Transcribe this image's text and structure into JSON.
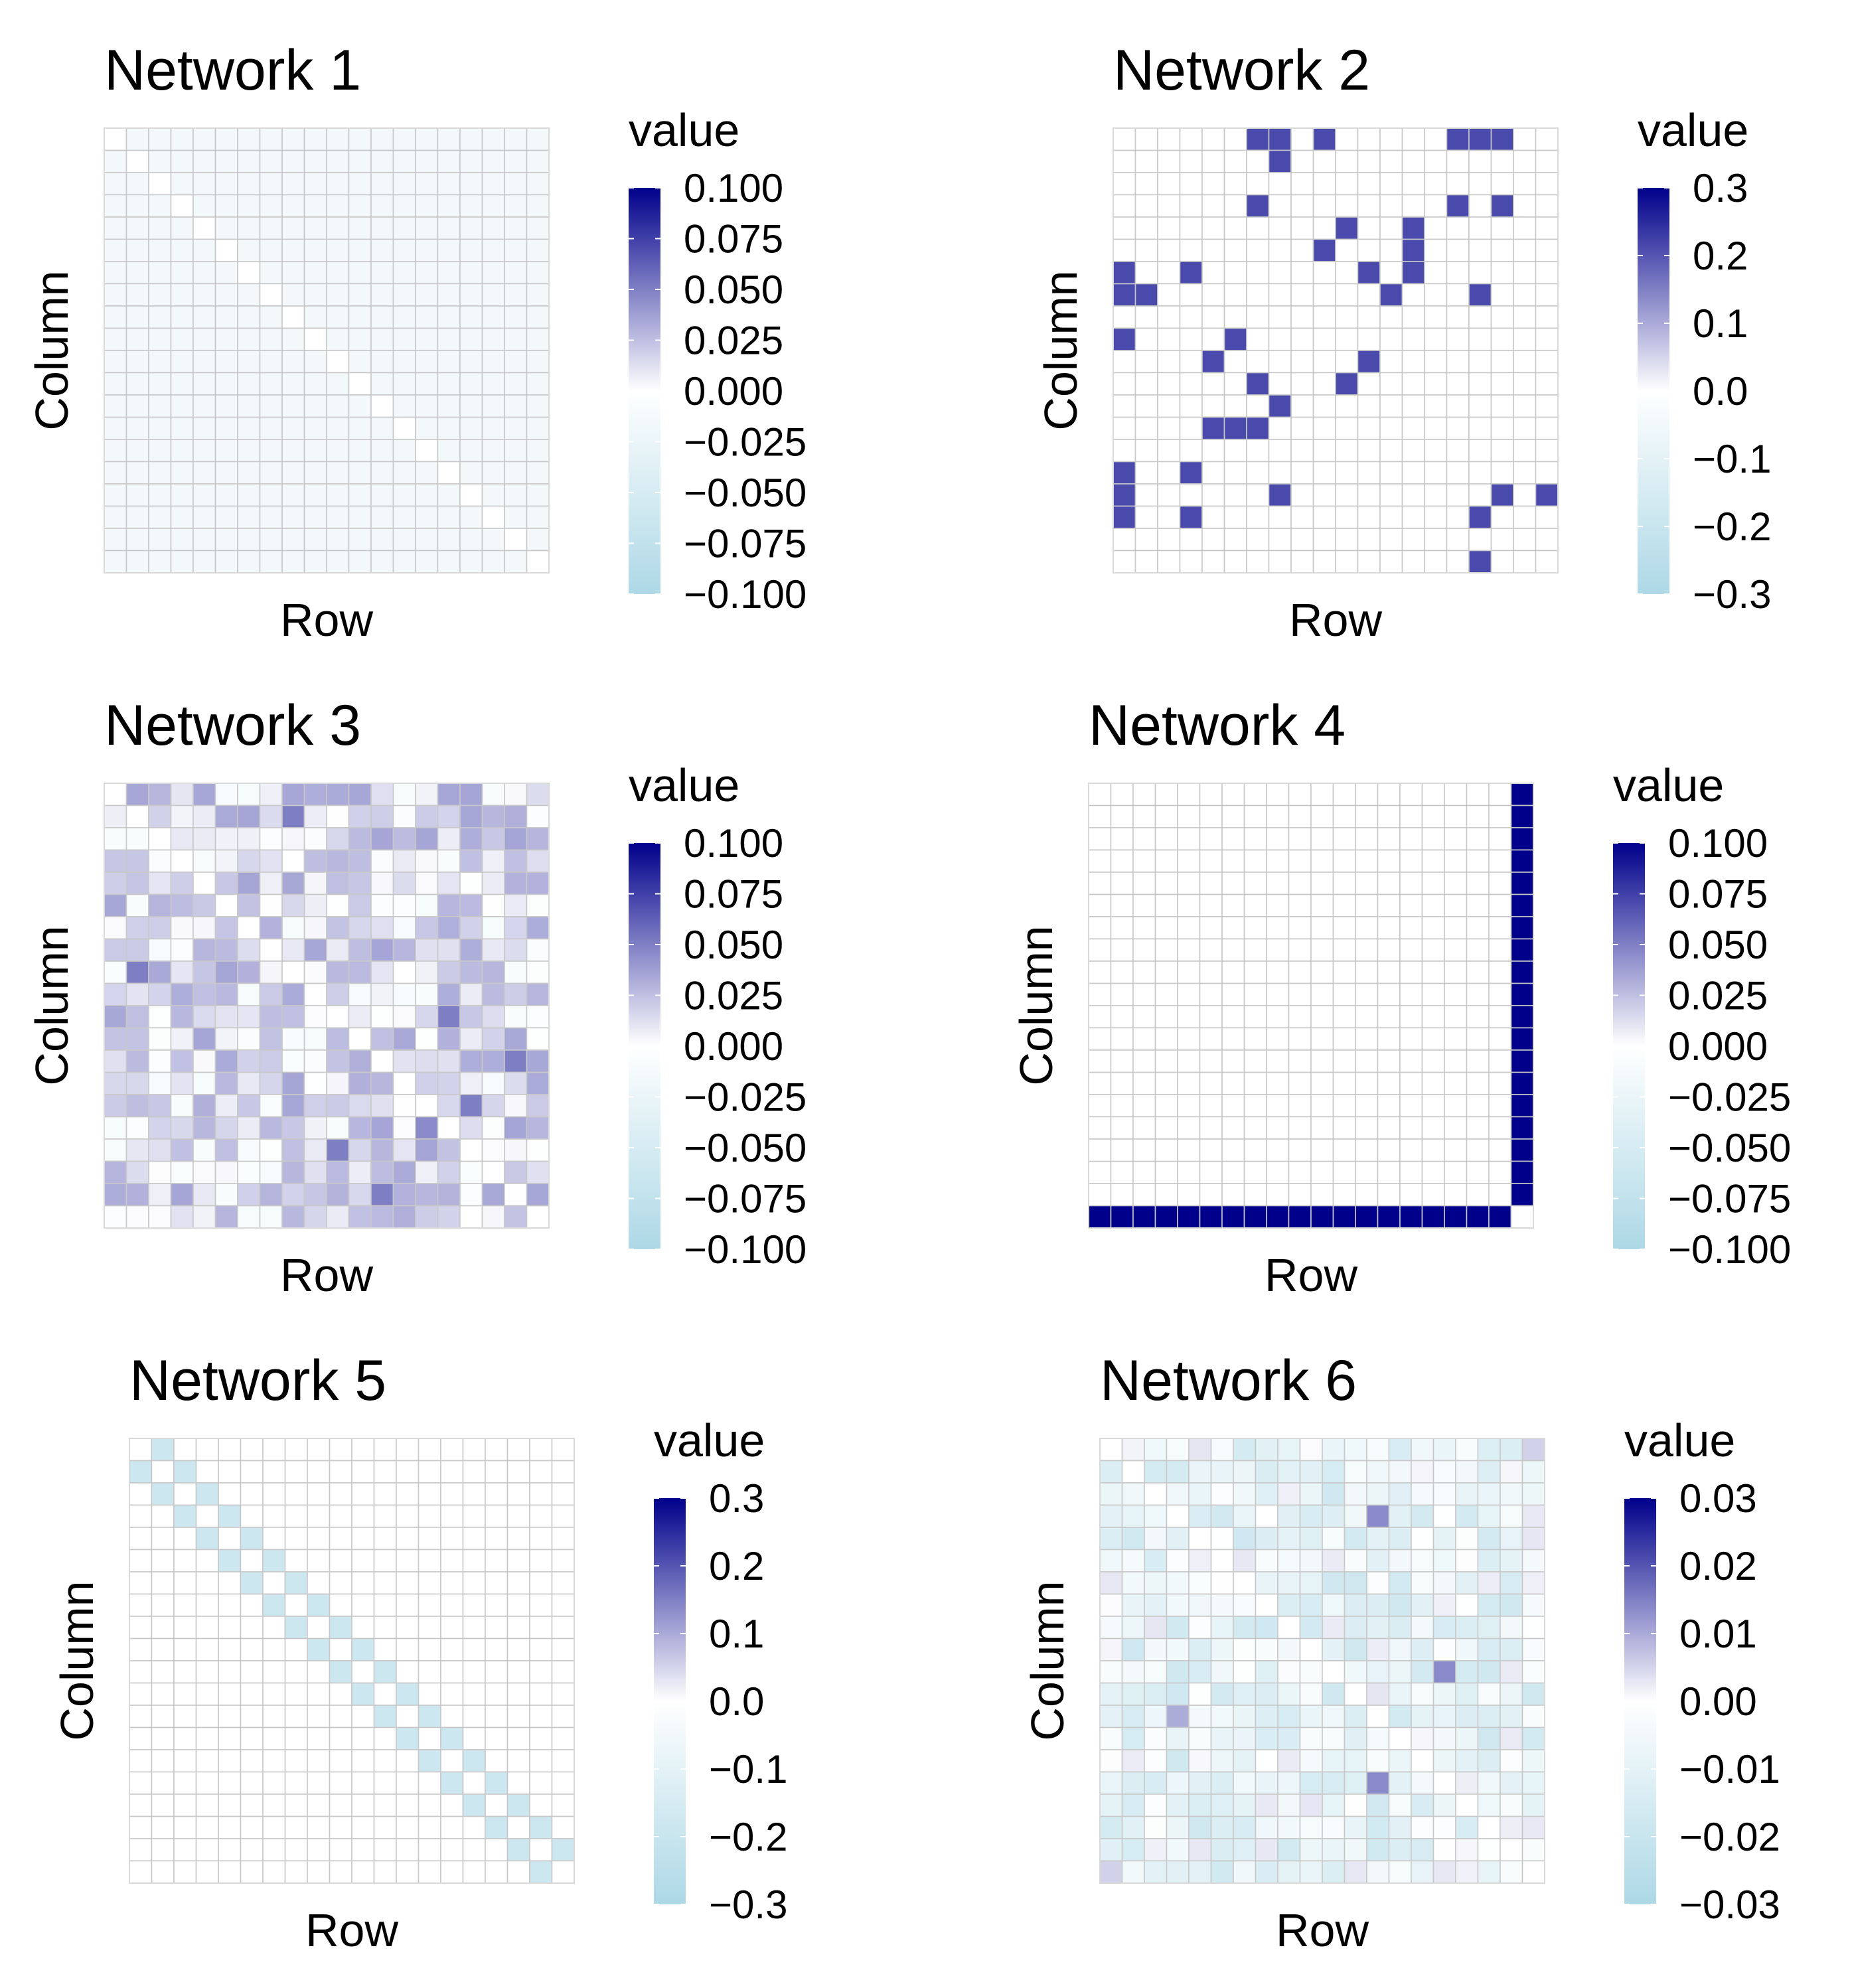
{
  "figure": {
    "background": "#ffffff"
  },
  "colors": {
    "low": "#add8e6",
    "mid": "#ffffff",
    "high": "#00008b",
    "grid": "#c8c8c8",
    "panel_border": "#d9d9d9"
  },
  "chart_data": [
    {
      "type": "heatmap",
      "title": "Network 1",
      "xlabel": "Row",
      "ylabel": "Column",
      "legend_title": "value",
      "n": 20,
      "limits": [
        -0.1,
        0.1
      ],
      "legend_ticks": [
        "0.100",
        "0.075",
        "0.050",
        "0.025",
        "0.000",
        "−0.025",
        "−0.050",
        "−0.075",
        "−0.100"
      ],
      "pattern": "uniform_offdiag",
      "offdiag_value": -0.01,
      "diag_value": 0
    },
    {
      "type": "heatmap",
      "title": "Network 2",
      "xlabel": "Row",
      "ylabel": "Column",
      "legend_title": "value",
      "n": 20,
      "limits": [
        -0.3,
        0.3
      ],
      "legend_ticks": [
        "0.3",
        "0.2",
        "0.1",
        "0.0",
        "−0.1",
        "−0.2",
        "−0.3"
      ],
      "pattern": "sparse",
      "value": 0.2,
      "cells": [
        [
          0,
          6
        ],
        [
          0,
          7
        ],
        [
          0,
          9
        ],
        [
          0,
          15
        ],
        [
          0,
          16
        ],
        [
          0,
          17
        ],
        [
          1,
          7
        ],
        [
          3,
          6
        ],
        [
          3,
          15
        ],
        [
          3,
          17
        ],
        [
          4,
          10
        ],
        [
          4,
          13
        ],
        [
          5,
          9
        ],
        [
          5,
          13
        ],
        [
          6,
          0
        ],
        [
          6,
          3
        ],
        [
          6,
          11
        ],
        [
          6,
          13
        ],
        [
          7,
          0
        ],
        [
          7,
          1
        ],
        [
          7,
          12
        ],
        [
          7,
          16
        ],
        [
          9,
          0
        ],
        [
          9,
          5
        ],
        [
          10,
          4
        ],
        [
          10,
          11
        ],
        [
          11,
          6
        ],
        [
          11,
          10
        ],
        [
          12,
          7
        ],
        [
          13,
          4
        ],
        [
          13,
          5
        ],
        [
          13,
          6
        ],
        [
          15,
          0
        ],
        [
          15,
          3
        ],
        [
          16,
          0
        ],
        [
          16,
          7
        ],
        [
          16,
          17
        ],
        [
          16,
          19
        ],
        [
          17,
          0
        ],
        [
          17,
          3
        ],
        [
          17,
          16
        ],
        [
          19,
          16
        ]
      ]
    },
    {
      "type": "heatmap",
      "title": "Network 3",
      "xlabel": "Row",
      "ylabel": "Column",
      "legend_title": "value",
      "n": 20,
      "limits": [
        -0.1,
        0.1
      ],
      "legend_ticks": [
        "0.100",
        "0.075",
        "0.050",
        "0.025",
        "0.000",
        "−0.025",
        "−0.050",
        "−0.075",
        "−0.100"
      ],
      "pattern": "random_noise",
      "noise_min": -0.008,
      "noise_max": 0.03,
      "seed": 3,
      "highlights": [
        [
          1,
          8,
          0.045
        ],
        [
          8,
          1,
          0.045
        ],
        [
          10,
          15,
          0.045
        ],
        [
          12,
          18,
          0.045
        ],
        [
          14,
          16,
          0.045
        ],
        [
          16,
          10,
          0.045
        ],
        [
          18,
          12,
          0.045
        ],
        [
          15,
          14,
          0.04
        ]
      ]
    },
    {
      "type": "heatmap",
      "title": "Network 4",
      "xlabel": "Row",
      "ylabel": "Column",
      "legend_title": "value",
      "n": 20,
      "limits": [
        -0.1,
        0.1
      ],
      "legend_ticks": [
        "0.100",
        "0.075",
        "0.050",
        "0.025",
        "0.000",
        "−0.025",
        "−0.050",
        "−0.075",
        "−0.100"
      ],
      "pattern": "star_last",
      "value": 0.1
    },
    {
      "type": "heatmap",
      "title": "Network 5",
      "xlabel": "Row",
      "ylabel": "Column",
      "legend_title": "value",
      "n": 20,
      "limits": [
        -0.3,
        0.3
      ],
      "legend_ticks": [
        "0.3",
        "0.2",
        "0.1",
        "0.0",
        "−0.1",
        "−0.2",
        "−0.3"
      ],
      "pattern": "tridiagonal",
      "value": -0.17
    },
    {
      "type": "heatmap",
      "title": "Network 6",
      "xlabel": "Row",
      "ylabel": "Column",
      "legend_title": "value",
      "n": 20,
      "limits": [
        -0.03,
        0.03
      ],
      "legend_ticks": [
        "0.03",
        "0.02",
        "0.01",
        "0.00",
        "−0.01",
        "−0.02",
        "−0.03"
      ],
      "pattern": "random_noise",
      "noise_min": -0.016,
      "noise_max": 0.002,
      "seed": 6,
      "highlights": [
        [
          3,
          12,
          0.012
        ],
        [
          10,
          15,
          0.012
        ],
        [
          15,
          12,
          0.012
        ],
        [
          12,
          3,
          0.008
        ],
        [
          0,
          19,
          0.004
        ],
        [
          19,
          0,
          0.004
        ]
      ]
    }
  ]
}
